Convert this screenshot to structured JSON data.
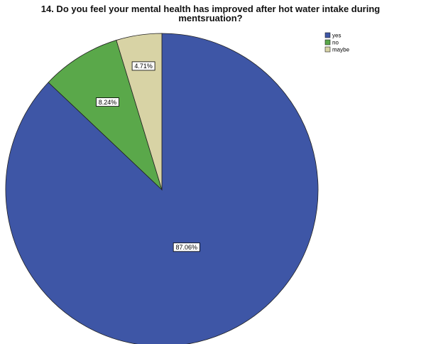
{
  "chart_data": {
    "type": "pie",
    "title_line1": "14. Do you feel your mental health has improved after hot water intake during",
    "title_line2": "mentsruation?",
    "slices": [
      {
        "category": "yes",
        "value": 87.06,
        "label": "87.06%",
        "color": "#3e56a6"
      },
      {
        "category": "no",
        "value": 8.24,
        "label": "8.24%",
        "color": "#5aa84a"
      },
      {
        "category": "maybe",
        "value": 4.71,
        "label": "4.71%",
        "color": "#d8d3a5"
      }
    ],
    "legend_position": "top-right"
  }
}
